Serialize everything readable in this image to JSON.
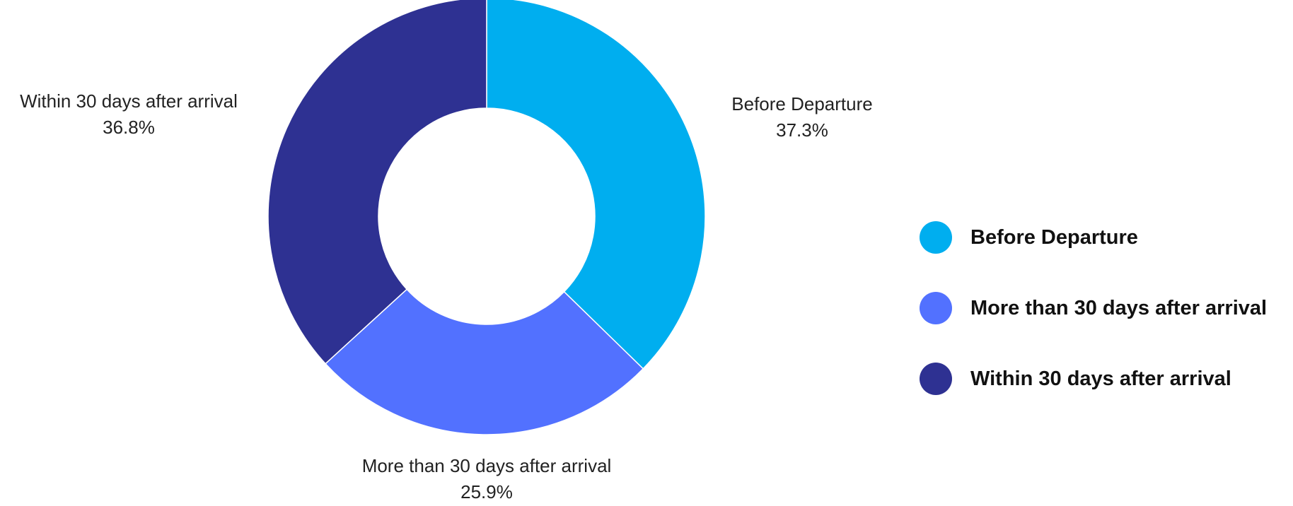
{
  "chart_data": {
    "type": "pie",
    "donut": true,
    "slices": [
      {
        "label": "Before Departure",
        "value": 37.3,
        "value_label": "37.3%",
        "color": "#00AEEF"
      },
      {
        "label": "More than 30 days after arrival",
        "value": 25.9,
        "value_label": "25.9%",
        "color": "#5271FF"
      },
      {
        "label": "Within 30 days after arrival",
        "value": 36.8,
        "value_label": "36.8%",
        "color": "#2E3192"
      }
    ],
    "legend": {
      "placement": "right",
      "entries": [
        {
          "label": "Before Departure",
          "color": "#00AEEF"
        },
        {
          "label": "More than 30 days after arrival",
          "color": "#5271FF"
        },
        {
          "label": "Within 30 days after arrival",
          "color": "#2E3192"
        }
      ]
    }
  }
}
